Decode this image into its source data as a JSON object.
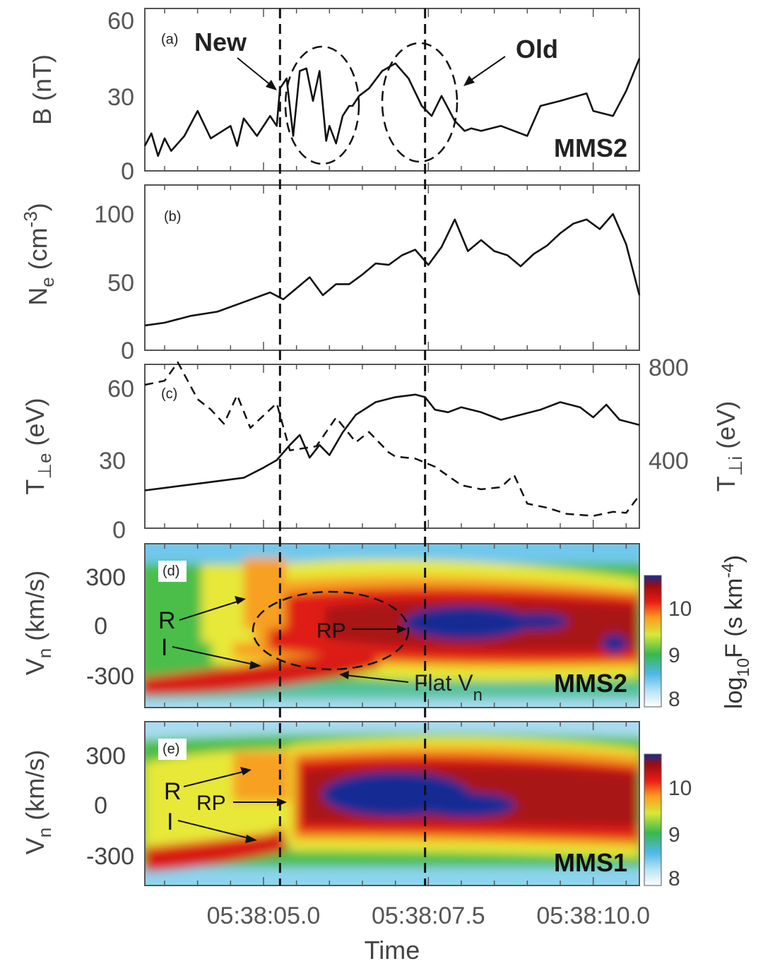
{
  "chart_data": [
    {
      "type": "line",
      "panel_label": "(a)",
      "ylabel": "B (nT)",
      "yticks": [
        "0",
        "30",
        "60"
      ],
      "ylim": [
        0,
        65
      ],
      "spacecraft": "MMS2",
      "xlim": [
        3.2,
        10.7
      ],
      "annotations": {
        "new": "New",
        "old": "Old"
      },
      "series": [
        {
          "name": "B",
          "x": [
            3.2,
            3.3,
            3.4,
            3.5,
            3.6,
            3.8,
            4.0,
            4.2,
            4.5,
            4.6,
            4.7,
            4.9,
            5.1,
            5.2,
            5.25,
            5.35,
            5.45,
            5.55,
            5.65,
            5.75,
            5.85,
            5.95,
            6.0,
            6.1,
            6.2,
            6.3,
            6.35,
            6.45,
            6.6,
            6.8,
            7.0,
            7.2,
            7.4,
            7.55,
            7.7,
            7.9,
            8.05,
            8.15,
            8.3,
            8.6,
            9.0,
            9.2,
            9.5,
            9.9,
            10.0,
            10.3,
            10.5,
            10.7
          ],
          "y": [
            10,
            15,
            6,
            13,
            8,
            14,
            24,
            13,
            18,
            10,
            21,
            14,
            22,
            18,
            33,
            37,
            14,
            40,
            41,
            28,
            40,
            12,
            18,
            11,
            22,
            26,
            26,
            30,
            33,
            40,
            43,
            37,
            26,
            22,
            30,
            20,
            16,
            17,
            16,
            18,
            14,
            26,
            28,
            31,
            24,
            22,
            32,
            45
          ]
        }
      ]
    },
    {
      "type": "line",
      "panel_label": "(b)",
      "ylabel": "Ne (cm-3)",
      "yticks": [
        "0",
        "50",
        "100"
      ],
      "ylim": [
        0,
        120
      ],
      "xlim": [
        3.2,
        10.7
      ],
      "series": [
        {
          "name": "Ne",
          "x": [
            3.2,
            3.5,
            3.9,
            4.3,
            4.7,
            5.1,
            5.3,
            5.5,
            5.7,
            5.9,
            6.1,
            6.3,
            6.5,
            6.7,
            6.9,
            7.1,
            7.3,
            7.5,
            7.7,
            7.9,
            8.1,
            8.3,
            8.5,
            8.7,
            8.9,
            9.1,
            9.3,
            9.5,
            9.7,
            9.9,
            10.1,
            10.3,
            10.5,
            10.7
          ],
          "y": [
            18,
            20,
            25,
            28,
            35,
            42,
            37,
            45,
            53,
            40,
            48,
            48,
            55,
            63,
            62,
            69,
            73,
            62,
            75,
            95,
            72,
            80,
            72,
            69,
            61,
            70,
            76,
            85,
            92,
            95,
            88,
            99,
            77,
            40
          ]
        }
      ]
    },
    {
      "type": "line",
      "panel_label": "(c)",
      "ylabel": "T⊥e (eV)",
      "ylabel_right": "T⊥i (eV)",
      "yticks": [
        "0",
        "30",
        "60"
      ],
      "yticks_right": [
        "400",
        "800"
      ],
      "ylim": [
        0,
        65
      ],
      "ylim_right": [
        0,
        800
      ],
      "xlim": [
        3.2,
        10.7
      ],
      "series": [
        {
          "name": "T⊥e",
          "style": "solid",
          "x": [
            3.2,
            3.5,
            3.8,
            4.1,
            4.4,
            4.7,
            5.0,
            5.2,
            5.4,
            5.55,
            5.7,
            5.85,
            6.0,
            6.2,
            6.4,
            6.7,
            7.0,
            7.3,
            7.45,
            7.6,
            7.8,
            8.0,
            8.3,
            8.6,
            8.9,
            9.2,
            9.5,
            9.8,
            10.0,
            10.2,
            10.4,
            10.7
          ],
          "y": [
            15,
            16,
            17,
            18,
            19,
            20,
            24,
            27,
            33,
            37,
            28,
            33,
            29,
            38,
            45,
            50,
            52,
            53,
            52,
            47,
            46,
            48,
            46,
            43,
            45,
            47,
            50,
            48,
            44,
            49,
            43,
            41
          ]
        },
        {
          "name": "T⊥i",
          "style": "dashed",
          "x": [
            3.2,
            3.5,
            3.7,
            4.0,
            4.2,
            4.4,
            4.6,
            4.8,
            5.2,
            5.4,
            5.8,
            6.1,
            6.4,
            6.6,
            6.9,
            7.0,
            7.3,
            7.6,
            8.0,
            8.3,
            8.6,
            8.8,
            9.0,
            9.3,
            9.6,
            10.0,
            10.3,
            10.5,
            10.7
          ],
          "y": [
            700,
            720,
            810,
            630,
            580,
            510,
            650,
            490,
            610,
            380,
            400,
            540,
            420,
            470,
            370,
            350,
            340,
            300,
            210,
            190,
            200,
            260,
            120,
            100,
            70,
            60,
            80,
            75,
            160
          ]
        }
      ]
    },
    {
      "type": "heatmap",
      "panel_label": "(d)",
      "ylabel": "Vn (km/s)",
      "yticks": [
        "-300",
        "0",
        "300"
      ],
      "ylim": [
        -480,
        480
      ],
      "xlim": [
        3.2,
        10.7
      ],
      "spacecraft": "MMS2",
      "colorbar": {
        "label": "log10F (s km-4)",
        "ticks": [
          "8",
          "9",
          "10"
        ],
        "range": [
          7.8,
          10.8
        ]
      },
      "labels": {
        "r": "R",
        "i": "I",
        "rp": "RP",
        "flat": "Flat Vn"
      }
    },
    {
      "type": "heatmap",
      "panel_label": "(e)",
      "ylabel": "Vn (km/s)",
      "yticks": [
        "-300",
        "0",
        "300"
      ],
      "ylim": [
        -480,
        480
      ],
      "xlim": [
        3.2,
        10.7
      ],
      "spacecraft": "MMS1",
      "colorbar": {
        "label": "log10F (s km-4)",
        "ticks": [
          "8",
          "9",
          "10"
        ],
        "range": [
          7.8,
          10.8
        ]
      },
      "labels": {
        "r": "R",
        "i": "I",
        "rp": "RP"
      }
    }
  ],
  "x_axis": {
    "label": "Time",
    "ticks": [
      {
        "v": 5.0,
        "label": "05:38:05.0"
      },
      {
        "v": 7.5,
        "label": "05:38:07.5"
      },
      {
        "v": 10.0,
        "label": "05:38:10.0"
      }
    ]
  },
  "markers": [
    5.25,
    7.45
  ]
}
